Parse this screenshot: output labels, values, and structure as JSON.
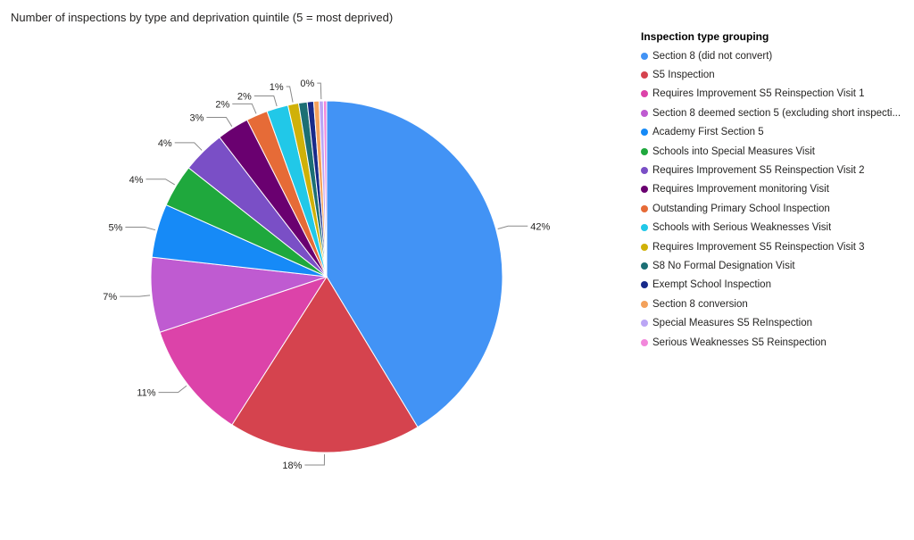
{
  "chart_data": {
    "type": "pie",
    "title": "Number of inspections by type and deprivation quintile (5 = most deprived)",
    "legend_title": "Inspection type grouping",
    "legend_position": "right",
    "slices": [
      {
        "name": "Section 8 (did not convert)",
        "value": 42,
        "label": "42%",
        "color": "#4293F5"
      },
      {
        "name": "S5 Inspection",
        "value": 18,
        "label": "18%",
        "color": "#D5434E"
      },
      {
        "name": "Requires Improvement S5 Reinspection Visit 1",
        "value": 11,
        "label": "11%",
        "color": "#DC43A9"
      },
      {
        "name": "Section 8 deemed section 5 (excluding short inspecti...",
        "value": 7,
        "label": "7%",
        "color": "#BF5BD1"
      },
      {
        "name": "Academy First Section 5",
        "value": 5,
        "label": "5%",
        "color": "#168AF7"
      },
      {
        "name": "Schools into Special Measures Visit",
        "value": 4,
        "label": "4%",
        "color": "#1FA83D"
      },
      {
        "name": "Requires Improvement S5 Reinspection Visit 2",
        "value": 4,
        "label": "4%",
        "color": "#7A4FC6"
      },
      {
        "name": "Requires Improvement monitoring Visit",
        "value": 3,
        "label": "3%",
        "color": "#6A0070"
      },
      {
        "name": "Outstanding Primary School Inspection",
        "value": 2,
        "label": "2%",
        "color": "#E66B37"
      },
      {
        "name": "Schools with Serious Weaknesses Visit",
        "value": 2,
        "label": "2%",
        "color": "#21C8E8"
      },
      {
        "name": "Requires Improvement S5 Reinspection Visit 3",
        "value": 1,
        "label": "1%",
        "color": "#D0B108"
      },
      {
        "name": "S8 No Formal Designation Visit",
        "value": 0.8,
        "label": "",
        "color": "#1C6F74"
      },
      {
        "name": "Exempt School Inspection",
        "value": 0.6,
        "label": "",
        "color": "#182A8A"
      },
      {
        "name": "Section 8 conversion",
        "value": 0.5,
        "label": "",
        "color": "#F3A15B"
      },
      {
        "name": "Special Measures S5 ReInspection",
        "value": 0.4,
        "label": "0%",
        "color": "#BBA6F5"
      },
      {
        "name": "Serious Weaknesses S5 Reinspection",
        "value": 0.3,
        "label": "",
        "color": "#F287DB"
      }
    ]
  }
}
